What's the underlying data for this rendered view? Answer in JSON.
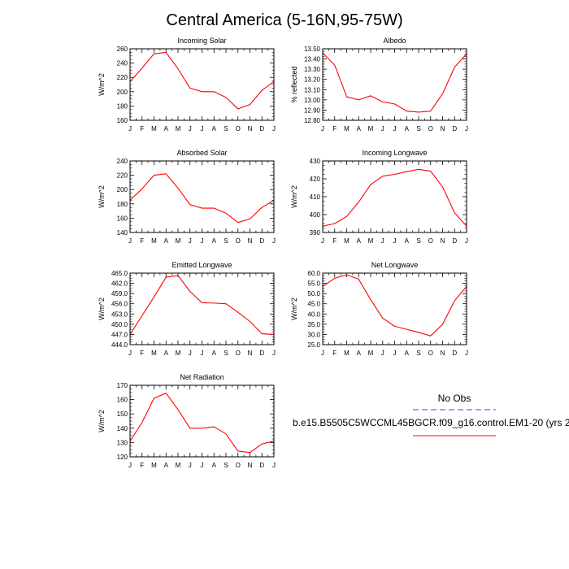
{
  "title": "Central America (5-16N,95-75W)",
  "legend": {
    "obs_label": "No Obs",
    "model_label": "b.e15.B5505C5WCCML45BGCR.f09_g16.control.EM1-20 (yrs 2",
    "obs_color": "#6666ff",
    "model_color": "#ff0000"
  },
  "chart_data": [
    {
      "type": "line",
      "title": "Incoming Solar",
      "xlabel": "",
      "ylabel": "W/m^2",
      "categories": [
        "J",
        "F",
        "M",
        "A",
        "M",
        "J",
        "J",
        "A",
        "S",
        "O",
        "N",
        "D",
        "J"
      ],
      "ylim": [
        160,
        260
      ],
      "yticks": [
        "160",
        "180",
        "200",
        "220",
        "240",
        "260"
      ],
      "series": [
        {
          "name": "b.e15.B5505C5WCCML45BGCR.f09_g16.control.EM1-20",
          "color": "#ff0000",
          "values": [
            214,
            233,
            253,
            255,
            232,
            205,
            200,
            200,
            192,
            176,
            182,
            202,
            214
          ]
        }
      ]
    },
    {
      "type": "line",
      "title": "Albedo",
      "xlabel": "",
      "ylabel": "% reflected",
      "categories": [
        "J",
        "F",
        "M",
        "A",
        "M",
        "J",
        "J",
        "A",
        "S",
        "O",
        "N",
        "D",
        "J"
      ],
      "ylim": [
        12.8,
        13.5
      ],
      "yticks": [
        "12.80",
        "12.90",
        "13.00",
        "13.10",
        "13.20",
        "13.30",
        "13.40",
        "13.50"
      ],
      "series": [
        {
          "name": "b.e15.B5505C5WCCML45BGCR.f09_g16.control.EM1-20",
          "color": "#ff0000",
          "values": [
            13.46,
            13.34,
            13.03,
            13.0,
            13.04,
            12.98,
            12.96,
            12.89,
            12.88,
            12.89,
            13.06,
            13.32,
            13.45
          ]
        }
      ]
    },
    {
      "type": "line",
      "title": "Absorbed Solar",
      "xlabel": "",
      "ylabel": "W/m^2",
      "categories": [
        "J",
        "F",
        "M",
        "A",
        "M",
        "J",
        "J",
        "A",
        "S",
        "O",
        "N",
        "D",
        "J"
      ],
      "ylim": [
        140,
        240
      ],
      "yticks": [
        "140",
        "160",
        "180",
        "200",
        "220",
        "240"
      ],
      "series": [
        {
          "name": "b.e15.B5505C5WCCML45BGCR.f09_g16.control.EM1-20",
          "color": "#ff0000",
          "values": [
            185,
            201,
            220,
            222,
            202,
            179,
            174,
            174,
            167,
            154,
            159,
            175,
            185
          ]
        }
      ]
    },
    {
      "type": "line",
      "title": "Incoming Longwave",
      "xlabel": "",
      "ylabel": "W/m^2",
      "categories": [
        "J",
        "F",
        "M",
        "A",
        "M",
        "J",
        "J",
        "A",
        "S",
        "O",
        "N",
        "D",
        "J"
      ],
      "ylim": [
        390,
        430
      ],
      "yticks": [
        "390",
        "400",
        "410",
        "420",
        "430"
      ],
      "series": [
        {
          "name": "b.e15.B5505C5WCCML45BGCR.f09_g16.control.EM1-20",
          "color": "#ff0000",
          "values": [
            393.5,
            395.0,
            399.0,
            407.0,
            416.8,
            421.5,
            422.5,
            424.0,
            425.3,
            424.3,
            415.5,
            401.0,
            393.5
          ]
        }
      ]
    },
    {
      "type": "line",
      "title": "Emitted Longwave",
      "xlabel": "",
      "ylabel": "W/m^2",
      "categories": [
        "J",
        "F",
        "M",
        "A",
        "M",
        "J",
        "J",
        "A",
        "S",
        "O",
        "N",
        "D",
        "J"
      ],
      "ylim": [
        444.0,
        465.0
      ],
      "yticks": [
        "444.0",
        "447.0",
        "450.0",
        "453.0",
        "456.0",
        "459.0",
        "462.0",
        "465.0"
      ],
      "series": [
        {
          "name": "b.e15.B5505C5WCCML45BGCR.f09_g16.control.EM1-20",
          "color": "#ff0000",
          "values": [
            447.0,
            452.5,
            458.0,
            463.8,
            464.3,
            459.6,
            456.3,
            456.2,
            456.0,
            453.5,
            450.8,
            447.2,
            447.0
          ]
        }
      ]
    },
    {
      "type": "line",
      "title": "Net Longwave",
      "xlabel": "",
      "ylabel": "W/m^2",
      "categories": [
        "J",
        "F",
        "M",
        "A",
        "M",
        "J",
        "J",
        "A",
        "S",
        "O",
        "N",
        "D",
        "J"
      ],
      "ylim": [
        25.0,
        60.0
      ],
      "yticks": [
        "25.0",
        "30.0",
        "35.0",
        "40.0",
        "45.0",
        "50.0",
        "55.0",
        "60.0"
      ],
      "series": [
        {
          "name": "b.e15.B5505C5WCCML45BGCR.f09_g16.control.EM1-20",
          "color": "#ff0000",
          "values": [
            53.5,
            57.5,
            59.2,
            57.0,
            47.0,
            38.0,
            34.0,
            32.5,
            31.0,
            29.3,
            35.0,
            46.5,
            53.5
          ]
        }
      ]
    },
    {
      "type": "line",
      "title": "Net Radiation",
      "xlabel": "",
      "ylabel": "W/m^2",
      "categories": [
        "J",
        "F",
        "M",
        "A",
        "M",
        "J",
        "J",
        "A",
        "S",
        "O",
        "N",
        "D",
        "J"
      ],
      "ylim": [
        120,
        170
      ],
      "yticks": [
        "120",
        "130",
        "140",
        "150",
        "160",
        "170"
      ],
      "series": [
        {
          "name": "b.e15.B5505C5WCCML45BGCR.f09_g16.control.EM1-20",
          "color": "#ff0000",
          "values": [
            131,
            144,
            161,
            164.5,
            153,
            140,
            140,
            141,
            136,
            124,
            123,
            129,
            131
          ]
        }
      ]
    }
  ]
}
